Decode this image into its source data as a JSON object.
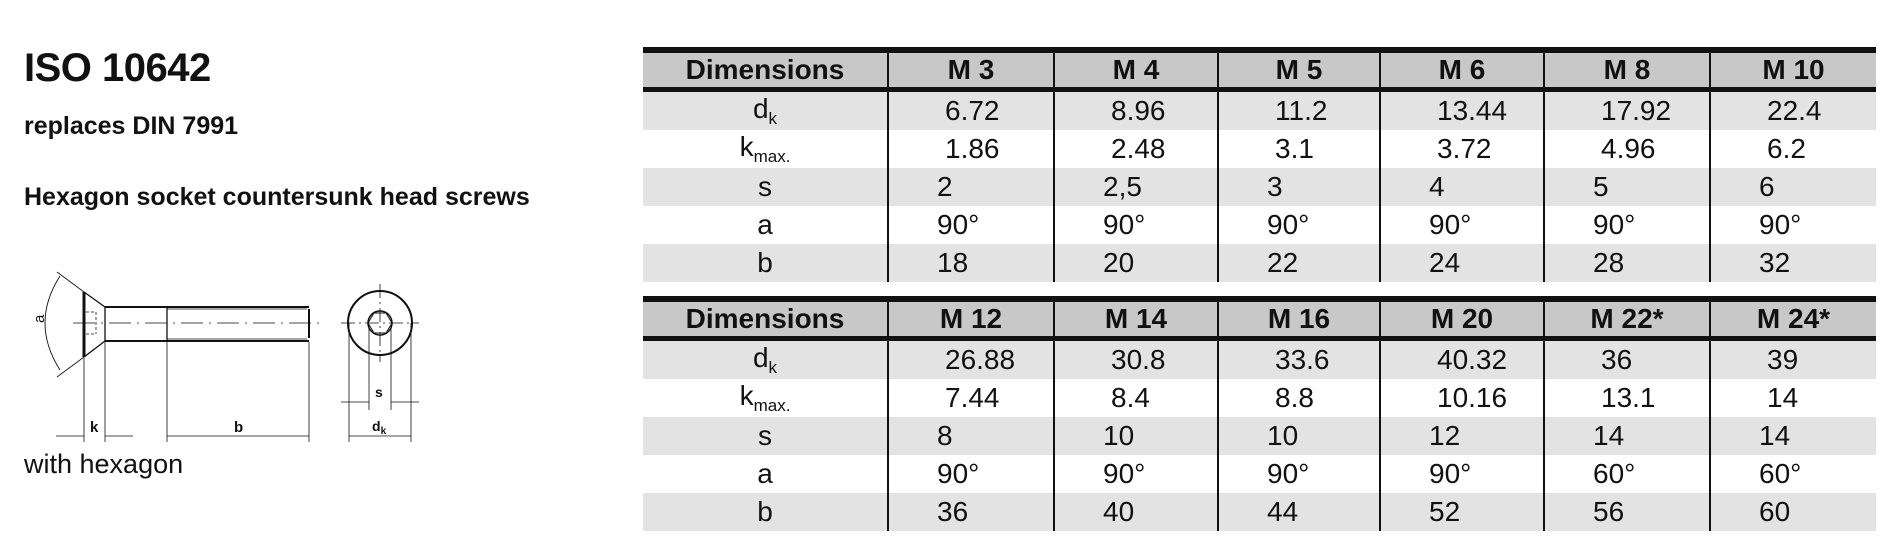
{
  "header": {
    "title": "ISO 10642",
    "replaces": "replaces DIN 7991",
    "description": "Hexagon socket countersunk head screws",
    "caption": "with hexagon"
  },
  "drawing": {
    "labels": {
      "a": "a",
      "k": "k",
      "b": "b",
      "s": "s",
      "dk_main": "d",
      "dk_sub": "k"
    }
  },
  "tables": [
    {
      "columns": [
        "Dimensions",
        "M 3",
        "M 4",
        "M 5",
        "M 6",
        "M 8",
        "M 10"
      ],
      "rows": [
        {
          "label": "d",
          "sub": "k",
          "values": [
            "6.72",
            "8.96",
            "11.2",
            "13.44",
            "17.92",
            "22.4"
          ]
        },
        {
          "label": "k",
          "sub": "max.",
          "values": [
            "1.86",
            "2.48",
            "3.1",
            "3.72",
            "4.96",
            "6.2"
          ]
        },
        {
          "label": "s",
          "sub": "",
          "values": [
            "2",
            "2,5",
            "3",
            "4",
            "5",
            "6"
          ]
        },
        {
          "label": "a",
          "sub": "",
          "values": [
            "90°",
            "90°",
            "90°",
            "90°",
            "90°",
            "90°"
          ]
        },
        {
          "label": "b",
          "sub": "",
          "values": [
            "18",
            "20",
            "22",
            "24",
            "28",
            "32"
          ]
        }
      ]
    },
    {
      "columns": [
        "Dimensions",
        "M 12",
        "M 14",
        "M 16",
        "M 20",
        "M 22*",
        "M 24*"
      ],
      "rows": [
        {
          "label": "d",
          "sub": "k",
          "values": [
            "26.88",
            "30.8",
            "33.6",
            "40.32",
            "36",
            "39"
          ]
        },
        {
          "label": "k",
          "sub": "max.",
          "values": [
            "7.44",
            "8.4",
            "8.8",
            "10.16",
            "13.1",
            "14"
          ]
        },
        {
          "label": "s",
          "sub": "",
          "values": [
            "8",
            "10",
            "10",
            "12",
            "14",
            "14"
          ]
        },
        {
          "label": "a",
          "sub": "",
          "values": [
            "90°",
            "90°",
            "90°",
            "90°",
            "60°",
            "60°"
          ]
        },
        {
          "label": "b",
          "sub": "",
          "values": [
            "36",
            "40",
            "44",
            "52",
            "56",
            "60"
          ]
        }
      ]
    }
  ],
  "colors": {
    "header_bg": "#c8c8c8",
    "row_shade": "#e3e3e3",
    "rule": "#111111"
  }
}
